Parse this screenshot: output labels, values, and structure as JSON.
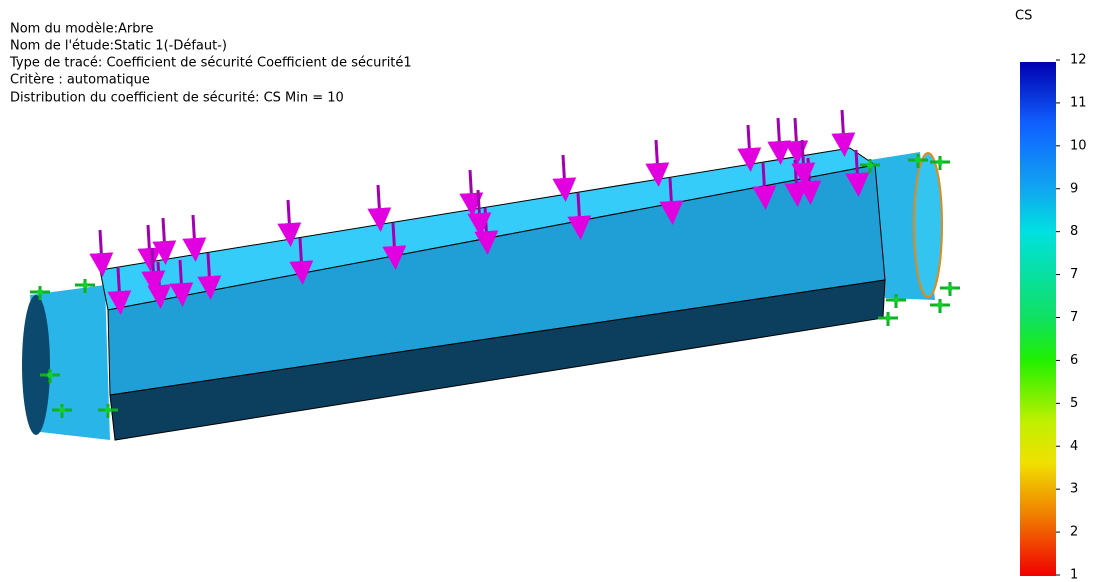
{
  "info": {
    "lines": [
      "Nom du modèle:Arbre",
      "Nom de l'étude:Static 1(-Défaut-)",
      "Type de tracé: Coefficient de sécurité Coefficient de sécurité1",
      "Critère : automatique",
      "Distribution du coefficient de sécurité: CS Min = 10"
    ]
  },
  "legend": {
    "title": "CS",
    "labels": [
      "12",
      "11",
      "10",
      "9",
      "8",
      "7",
      "7",
      "6",
      "5",
      "4",
      "3",
      "2",
      "1"
    ]
  }
}
